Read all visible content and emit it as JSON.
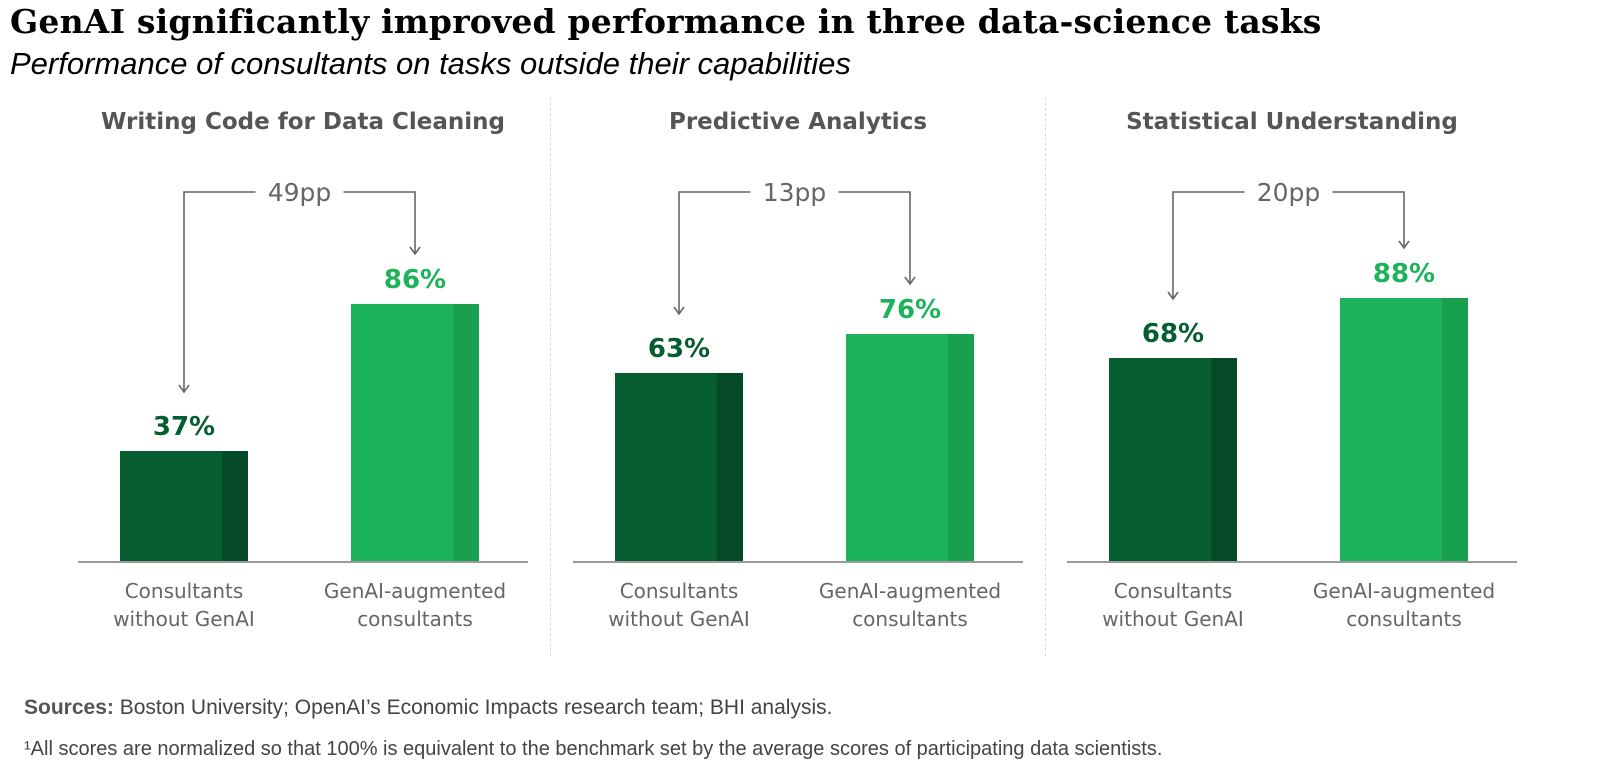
{
  "title": "GenAI significantly improved performance in three data-science tasks",
  "subtitle": "Performance of consultants on tasks outside their capabilities",
  "colors": {
    "dark": "#065e30",
    "dark_shade": "#044a26",
    "light": "#1db35a",
    "light_shade": "#19a04f",
    "text": "#555555",
    "bracket": "#666666"
  },
  "chart_data": [
    {
      "type": "bar",
      "title": "Writing Code for Data Cleaning",
      "categories": [
        "Consultants without GenAI",
        "GenAI-augmented consultants"
      ],
      "category_lines": [
        [
          "Consultants",
          "without GenAI"
        ],
        [
          "GenAI-augmented",
          "consultants"
        ]
      ],
      "values": [
        37,
        86
      ],
      "value_labels": [
        "37%",
        "86%"
      ],
      "difference_label": "49pp",
      "ylim": [
        0,
        100
      ]
    },
    {
      "type": "bar",
      "title": "Predictive Analytics",
      "categories": [
        "Consultants without GenAI",
        "GenAI-augmented consultants"
      ],
      "category_lines": [
        [
          "Consultants",
          "without GenAI"
        ],
        [
          "GenAI-augmented",
          "consultants"
        ]
      ],
      "values": [
        63,
        76
      ],
      "value_labels": [
        "63%",
        "76%"
      ],
      "difference_label": "13pp",
      "ylim": [
        0,
        100
      ]
    },
    {
      "type": "bar",
      "title": "Statistical Understanding",
      "categories": [
        "Consultants without GenAI",
        "GenAI-augmented consultants"
      ],
      "category_lines": [
        [
          "Consultants",
          "without GenAI"
        ],
        [
          "GenAI-augmented",
          "consultants"
        ]
      ],
      "values": [
        68,
        88
      ],
      "value_labels": [
        "68%",
        "88%"
      ],
      "difference_label": "20pp",
      "ylim": [
        0,
        100
      ]
    }
  ],
  "footer": {
    "sources_label": "Sources:",
    "sources_text": "Boston University; OpenAI’s Economic Impacts research team; BHI analysis.",
    "footnote": "¹All scores are normalized so that 100% is equivalent to the benchmark set by the average scores of participating data scientists."
  }
}
